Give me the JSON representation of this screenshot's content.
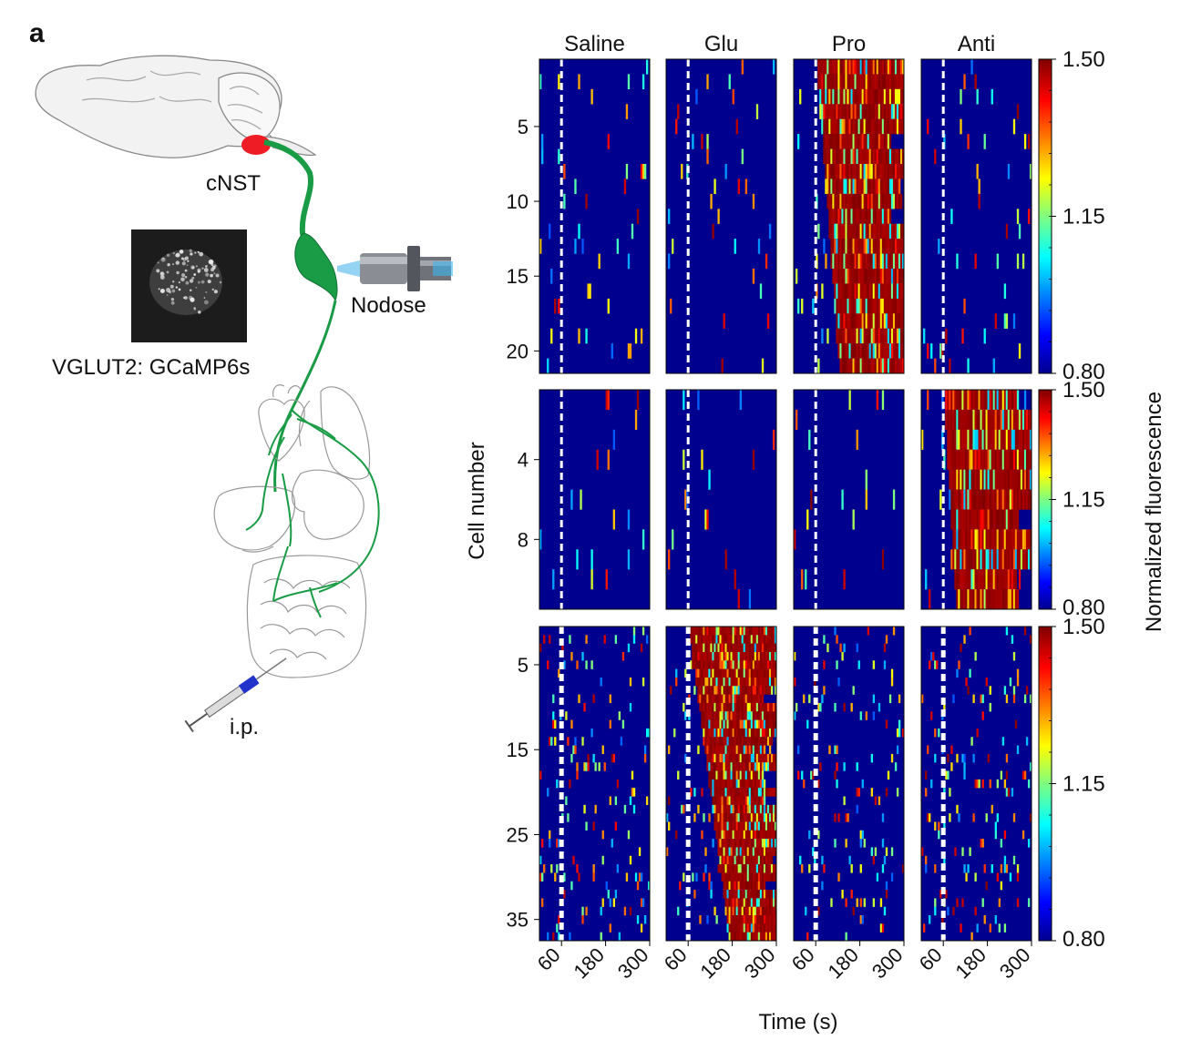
{
  "figure": {
    "panel_letter": "a",
    "illustration_labels": {
      "brain_region": "cNST",
      "ganglion": "Nodose",
      "imaging_label": "VGLUT2: GCaMP6s",
      "injection": "i.p."
    },
    "colors": {
      "background": "#00008f",
      "stimulus_line": "#ffffff",
      "nerve": "#1a9b45",
      "cnst_marker": "#ee1c24",
      "syringe_plunger": "#2233cc"
    }
  },
  "chart_data": {
    "type": "heatmap",
    "columns": [
      "Saline",
      "Glu",
      "Pro",
      "Anti"
    ],
    "xlabel": "Time (s)",
    "ylabel": "Cell number",
    "x_ticks": [
      "60",
      "180",
      "300"
    ],
    "x_range": [
      0,
      300
    ],
    "stimulus_time": 60,
    "colorbar": {
      "label": "Normalized fluorescence",
      "range": [
        0.8,
        1.5
      ],
      "colormap": "jet"
    },
    "rows": [
      {
        "n_cells": 21,
        "y_ticks": [
          "5",
          "10",
          "15",
          "20"
        ],
        "y_tick_values": [
          5,
          10,
          15,
          20
        ],
        "colorbar_ticks": [
          "1.50",
          "1.15",
          "0.80"
        ],
        "responsive_column": "Pro"
      },
      {
        "n_cells": 11,
        "y_ticks": [
          "4",
          "8"
        ],
        "y_tick_values": [
          4,
          8
        ],
        "colorbar_ticks": [
          "1.50",
          "1.15",
          "0.80"
        ],
        "responsive_column": "Anti"
      },
      {
        "n_cells": 37,
        "y_ticks": [
          "5",
          "15",
          "25",
          "35"
        ],
        "y_tick_values": [
          5,
          15,
          25,
          35
        ],
        "colorbar_ticks": [
          "1.50",
          "1.15",
          "0.80"
        ],
        "responsive_column": "Glu"
      }
    ]
  }
}
